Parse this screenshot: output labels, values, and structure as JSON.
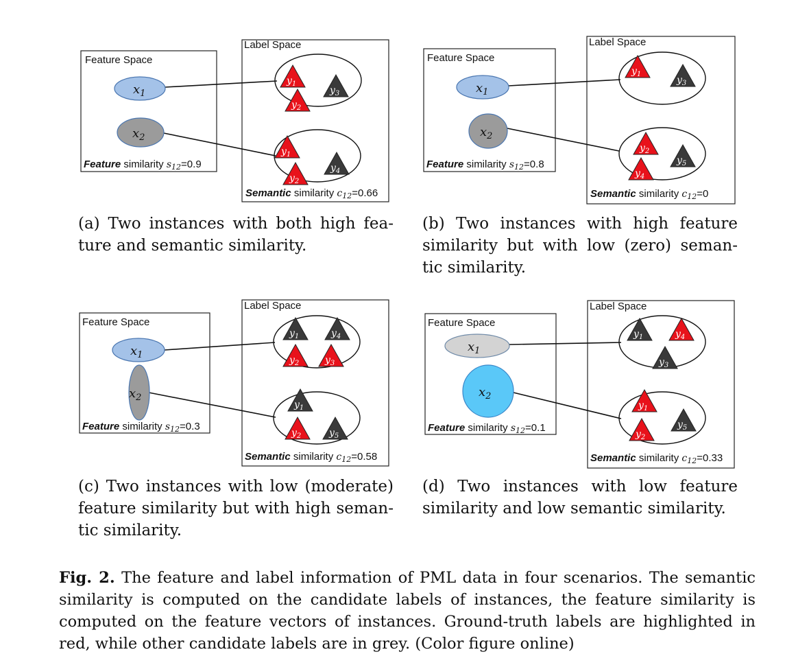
{
  "panels": [
    {
      "id": "a",
      "feature_space_title": "Feature Space",
      "label_space_title": "Label Space",
      "x1": "x",
      "x1_sub": "1",
      "x2": "x",
      "x2_sub": "2",
      "x1_color": "#a4c2e8",
      "x2_color": "#9b9b9b",
      "set1": [
        {
          "label": "y",
          "sub": "1",
          "color": "red"
        },
        {
          "label": "y",
          "sub": "3",
          "color": "grey"
        },
        {
          "label": "y",
          "sub": "2",
          "color": "red"
        }
      ],
      "set2": [
        {
          "label": "y",
          "sub": "1",
          "color": "red"
        },
        {
          "label": "y",
          "sub": "4",
          "color": "grey"
        },
        {
          "label": "y",
          "sub": "2",
          "color": "red"
        }
      ],
      "feature_sim_word": "Feature",
      "feature_sim_rest": " similarity ",
      "feature_sim_sym": "s",
      "feature_sim_sub": "12",
      "feature_sim_value": "=0.9",
      "semantic_sim_word": "Semantic",
      "semantic_sim_rest": " similarity ",
      "semantic_sim_sym": "c",
      "semantic_sim_sub": "12",
      "semantic_sim_value": "=0.66",
      "caption": "(a) Two instances with both high fea- ture and semantic similarity."
    },
    {
      "id": "b",
      "feature_space_title": "Feature Space",
      "label_space_title": "Label Space",
      "x1": "x",
      "x1_sub": "1",
      "x2": "x",
      "x2_sub": "2",
      "x1_color": "#a4c2e8",
      "x2_color": "#9b9b9b",
      "set1": [
        {
          "label": "y",
          "sub": "1",
          "color": "red"
        },
        {
          "label": "y",
          "sub": "3",
          "color": "grey"
        }
      ],
      "set2": [
        {
          "label": "y",
          "sub": "2",
          "color": "red"
        },
        {
          "label": "y",
          "sub": "5",
          "color": "grey"
        },
        {
          "label": "y",
          "sub": "4",
          "color": "red"
        }
      ],
      "feature_sim_word": "Feature",
      "feature_sim_rest": " similarity ",
      "feature_sim_sym": "s",
      "feature_sim_sub": "12",
      "feature_sim_value": "=0.8",
      "semantic_sim_word": "Semantic",
      "semantic_sim_rest": " similarity ",
      "semantic_sim_sym": "c",
      "semantic_sim_sub": "12",
      "semantic_sim_value": "=0",
      "caption": "(b) Two instances with high feature similarity but with low (zero) seman- tic similarity."
    },
    {
      "id": "c",
      "feature_space_title": "Feature Space",
      "label_space_title": "Label Space",
      "x1": "x",
      "x1_sub": "1",
      "x2": "x",
      "x2_sub": "2",
      "x1_color": "#a4c2e8",
      "x2_color": "#9b9b9b",
      "set1": [
        {
          "label": "y",
          "sub": "1",
          "color": "grey"
        },
        {
          "label": "y",
          "sub": "4",
          "color": "grey"
        },
        {
          "label": "y",
          "sub": "2",
          "color": "red"
        },
        {
          "label": "y",
          "sub": "3",
          "color": "red"
        }
      ],
      "set2": [
        {
          "label": "y",
          "sub": "1",
          "color": "grey"
        },
        {
          "label": "y",
          "sub": "2",
          "color": "red"
        },
        {
          "label": "y",
          "sub": "5",
          "color": "grey"
        }
      ],
      "feature_sim_word": "Feature",
      "feature_sim_rest": " similarity ",
      "feature_sim_sym": "s",
      "feature_sim_sub": "12",
      "feature_sim_value": "=0.3",
      "semantic_sim_word": "Semantic",
      "semantic_sim_rest": " similarity ",
      "semantic_sim_sym": "c",
      "semantic_sim_sub": "12",
      "semantic_sim_value": "=0.58",
      "caption": "(c) Two instances with low (moderate) feature similarity but with high seman- tic similarity."
    },
    {
      "id": "d",
      "feature_space_title": "Feature Space",
      "label_space_title": "Label Space",
      "x1": "x",
      "x1_sub": "1",
      "x2": "x",
      "x2_sub": "2",
      "x1_color": "#d3d3d3",
      "x2_color": "#5ac8f8",
      "set1": [
        {
          "label": "y",
          "sub": "1",
          "color": "grey"
        },
        {
          "label": "y",
          "sub": "4",
          "color": "red"
        },
        {
          "label": "y",
          "sub": "3",
          "color": "grey"
        }
      ],
      "set2": [
        {
          "label": "y",
          "sub": "1",
          "color": "red"
        },
        {
          "label": "y",
          "sub": "5",
          "color": "grey"
        },
        {
          "label": "y",
          "sub": "2",
          "color": "red"
        }
      ],
      "feature_sim_word": "Feature",
      "feature_sim_rest": " similarity ",
      "feature_sim_sym": "s",
      "feature_sim_sub": "12",
      "feature_sim_value": "=0.1",
      "semantic_sim_word": "Semantic",
      "semantic_sim_rest": " similarity ",
      "semantic_sim_sym": "c",
      "semantic_sim_sub": "12",
      "semantic_sim_value": "=0.33",
      "caption": "(d) Two instances with low feature similarity and low semantic similarity."
    }
  ],
  "colors": {
    "red": "#e8121b",
    "grey": "#3a3a3a"
  },
  "main_caption": {
    "label": "Fig. 2.",
    "text": " The feature and label information of PML data in four scenarios. The semantic similarity is computed on the candidate labels of instances, the feature similarity is computed on the feature vectors of instances. Ground-truth labels are highlighted in red, while other candidate labels are in grey. (Color figure online)"
  }
}
